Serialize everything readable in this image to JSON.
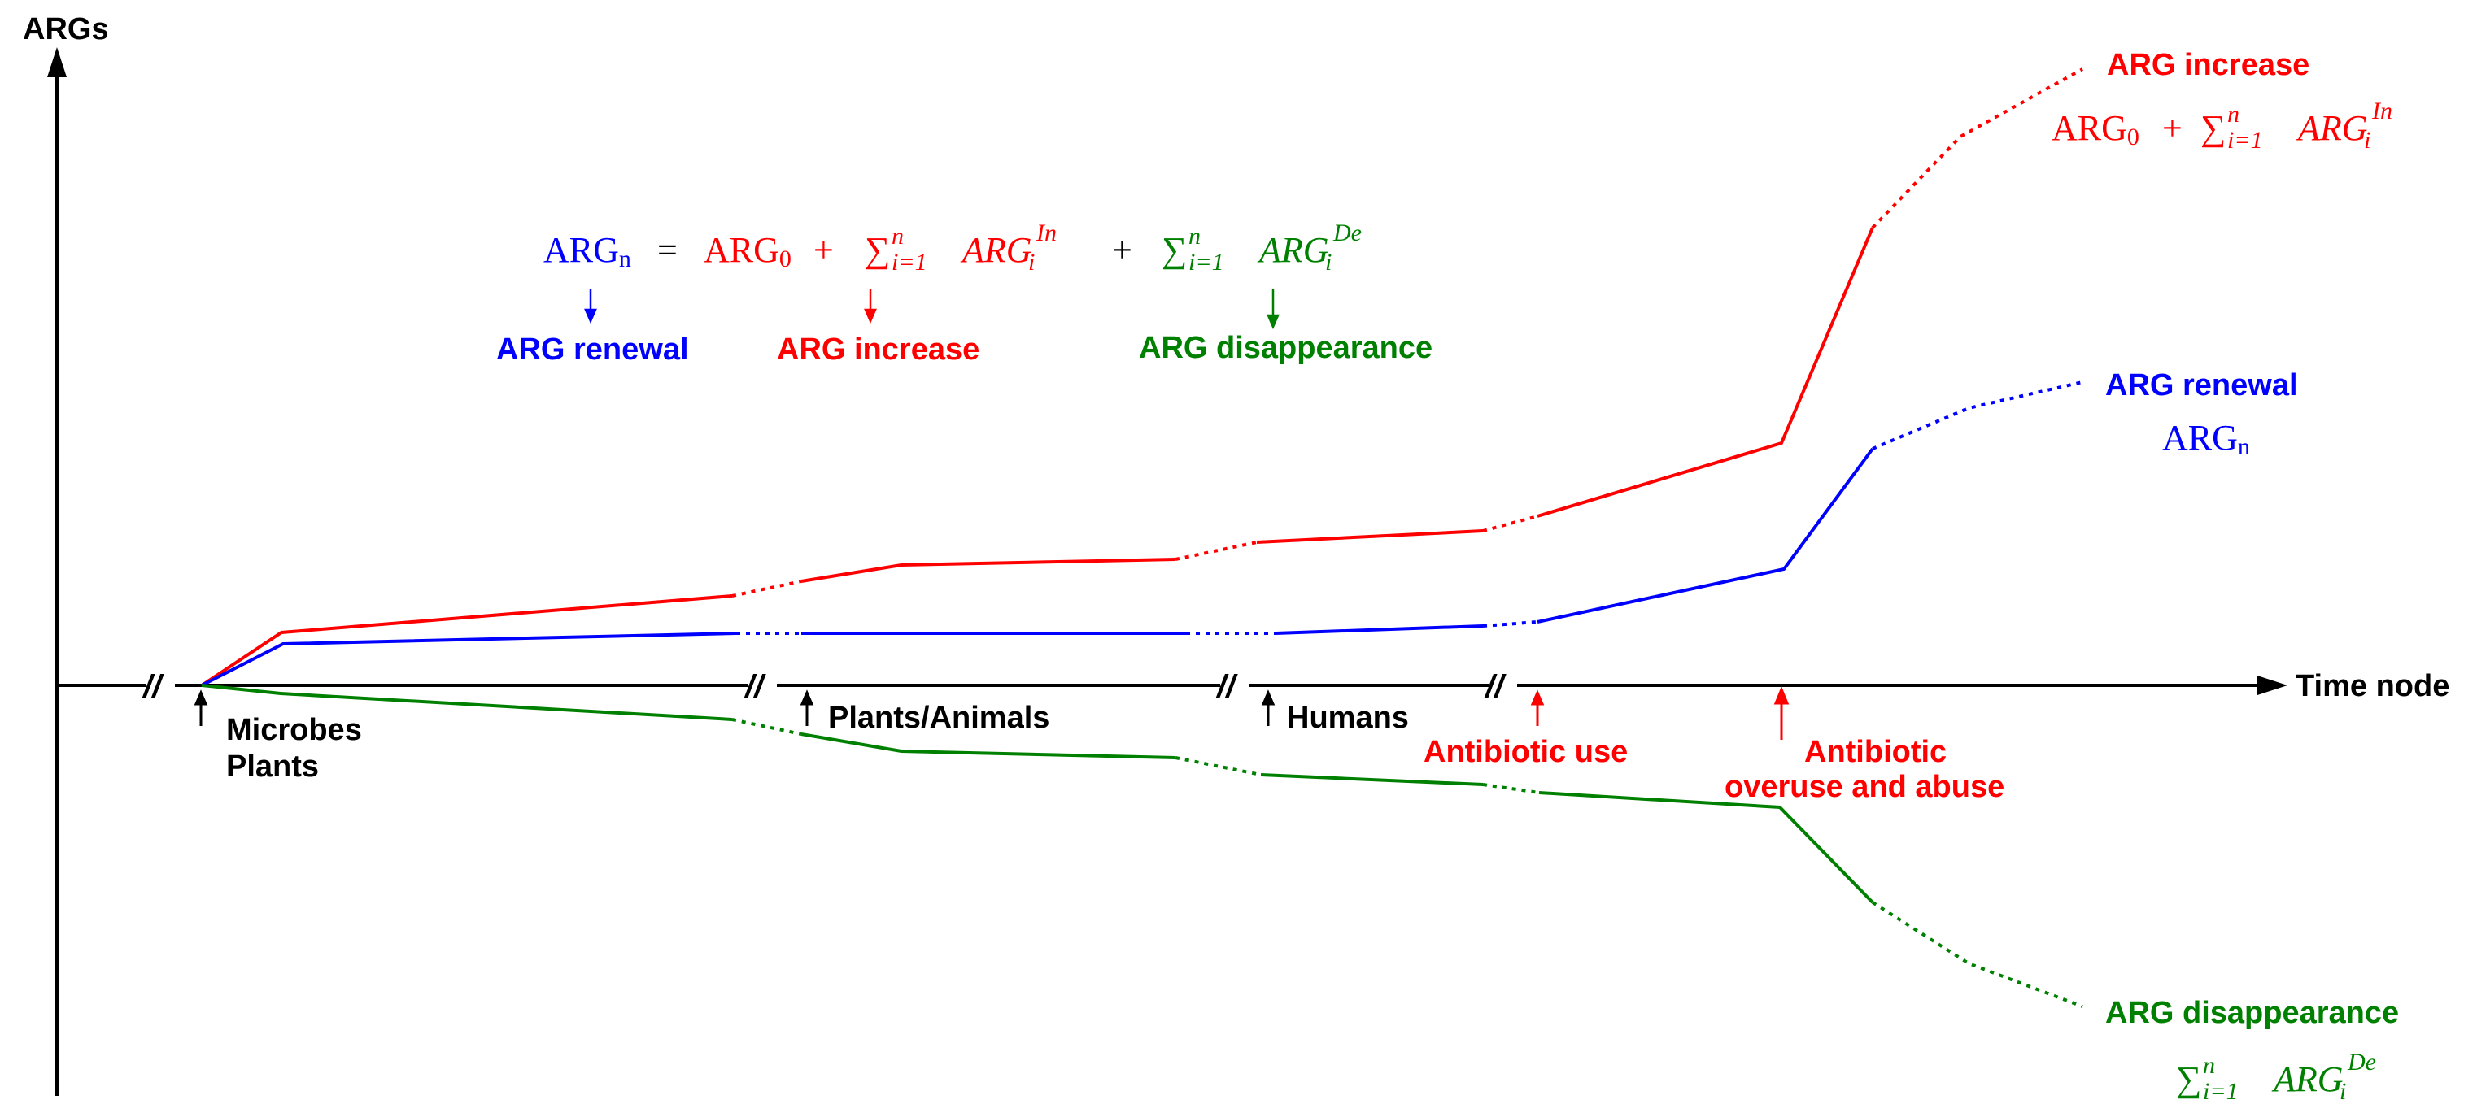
{
  "axes": {
    "y_label": "ARGs",
    "x_label": "Time node"
  },
  "colors": {
    "axis": "#000000",
    "increase": "#ff0000",
    "renewal": "#0000ff",
    "disappearance": "#008000"
  },
  "timeline": {
    "node_1": "Microbes",
    "node_1b": "Plants",
    "node_2": "Plants/Animals",
    "node_3": "Humans",
    "node_4": "Antibiotic use",
    "node_5": "Antibiotic",
    "node_5b": "overuse and abuse"
  },
  "formula": {
    "lhs": "ARG",
    "lhs_sub": "n",
    "eq": "=",
    "arg0": "ARG",
    "arg0_sub": "0",
    "plus": "+",
    "sum": "∑",
    "sum_upper": "n",
    "sum_lower": "i=1",
    "term": "ARG",
    "term_sub": "i",
    "in_sup": "In",
    "de_sup": "De",
    "renewal_label": "ARG renewal",
    "increase_label": "ARG increase",
    "disappearance_label": "ARG disappearance"
  },
  "legend": {
    "increase": "ARG increase",
    "renewal": "ARG renewal",
    "disappearance": "ARG disappearance"
  },
  "break_mark": "//"
}
